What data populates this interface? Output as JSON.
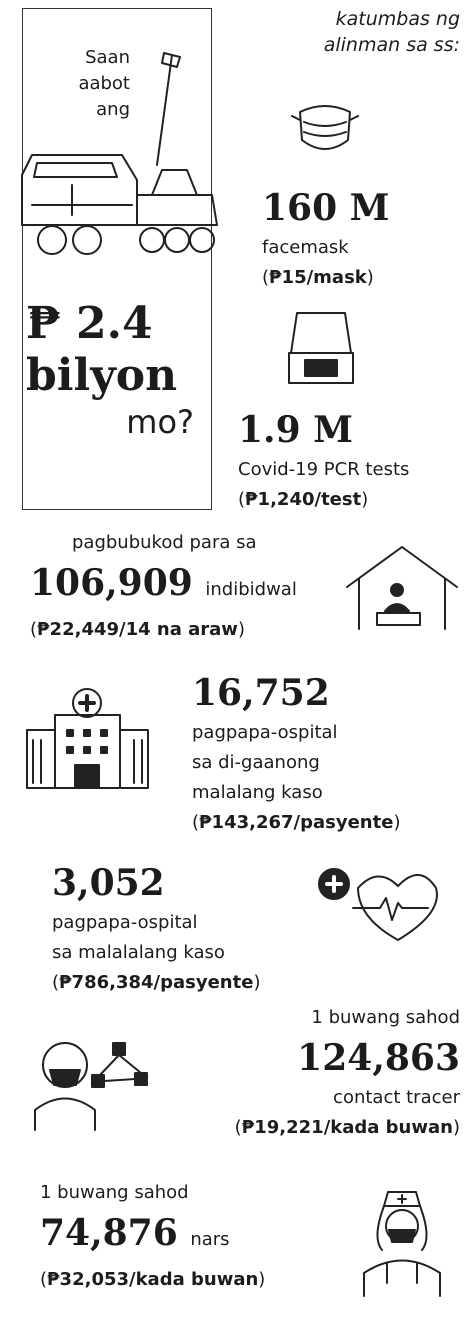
{
  "intro": {
    "question_lines": [
      "Saan",
      "aabot",
      "ang"
    ],
    "amount": "₱ 2.4",
    "unit": "bilyon",
    "question_end": "mo?"
  },
  "equivalent_header": [
    "katumbas ng",
    "alinman sa ss:"
  ],
  "items": [
    {
      "count": "160 M",
      "label_lines": [
        "facemask"
      ],
      "cost": {
        "open": "(",
        "amount": "₱15/mask",
        "close": ")"
      }
    },
    {
      "count": "1.9 M",
      "label_lines": [
        "Covid-19 PCR tests"
      ],
      "cost": {
        "open": "(",
        "amount": "₱1,240/test",
        "close": ")"
      }
    },
    {
      "pre": "pagbubukod para sa",
      "count": "106,909",
      "unit": "indibidwal",
      "cost": {
        "open": "(",
        "amount": "₱22,449/14 na araw",
        "close": ")"
      }
    },
    {
      "count": "16,752",
      "label_lines": [
        "pagpapa-ospital",
        "sa di-gaanong",
        "malalang kaso"
      ],
      "cost": {
        "open": "(",
        "amount": "₱143,267/pasyente",
        "close": ")"
      }
    },
    {
      "count": "3,052",
      "label_lines": [
        "pagpapa-ospital",
        "sa malalalang kaso"
      ],
      "cost": {
        "open": "(",
        "amount": "₱786,384/pasyente",
        "close": ")"
      }
    },
    {
      "pre": "1 buwang sahod",
      "count": "124,863",
      "label_lines": [
        "contact tracer"
      ],
      "cost": {
        "open": "(",
        "amount": "₱19,221/kada buwan",
        "close": ")"
      }
    },
    {
      "pre": "1 buwang sahod",
      "count": "74,876",
      "unit": "nars",
      "cost": {
        "open": "(",
        "amount": "₱32,053/kada buwan",
        "close": ")"
      }
    }
  ]
}
